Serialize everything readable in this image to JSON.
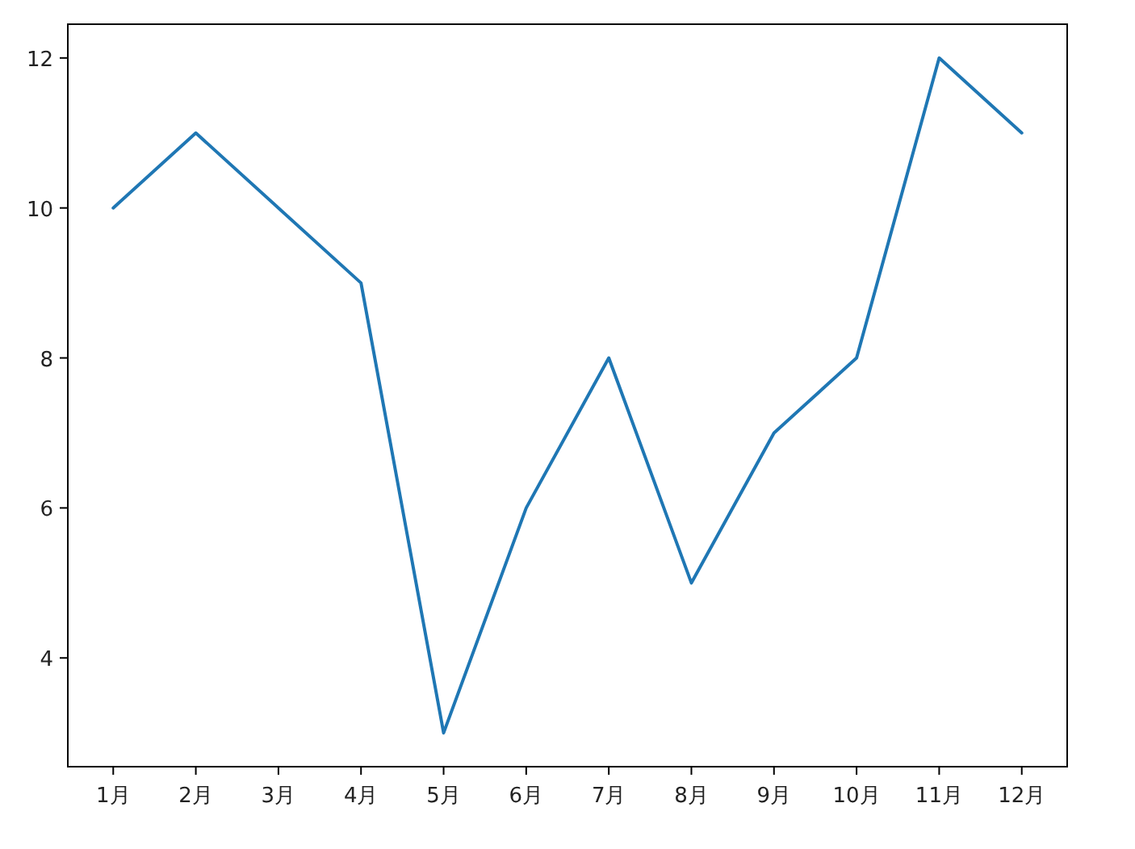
{
  "chart_data": {
    "type": "line",
    "categories": [
      "1月",
      "2月",
      "3月",
      "4月",
      "5月",
      "6月",
      "7月",
      "8月",
      "9月",
      "10月",
      "11月",
      "12月"
    ],
    "series": [
      {
        "color": "#1f77b4",
        "values": [
          10,
          11,
          10,
          9,
          3,
          6,
          8,
          5,
          7,
          8,
          12,
          11
        ]
      }
    ],
    "ylim": [
      2.55,
      12.45
    ],
    "yticks": [
      4,
      6,
      8,
      10,
      12
    ],
    "grid": false,
    "marker": "none",
    "line_style": "solid"
  }
}
